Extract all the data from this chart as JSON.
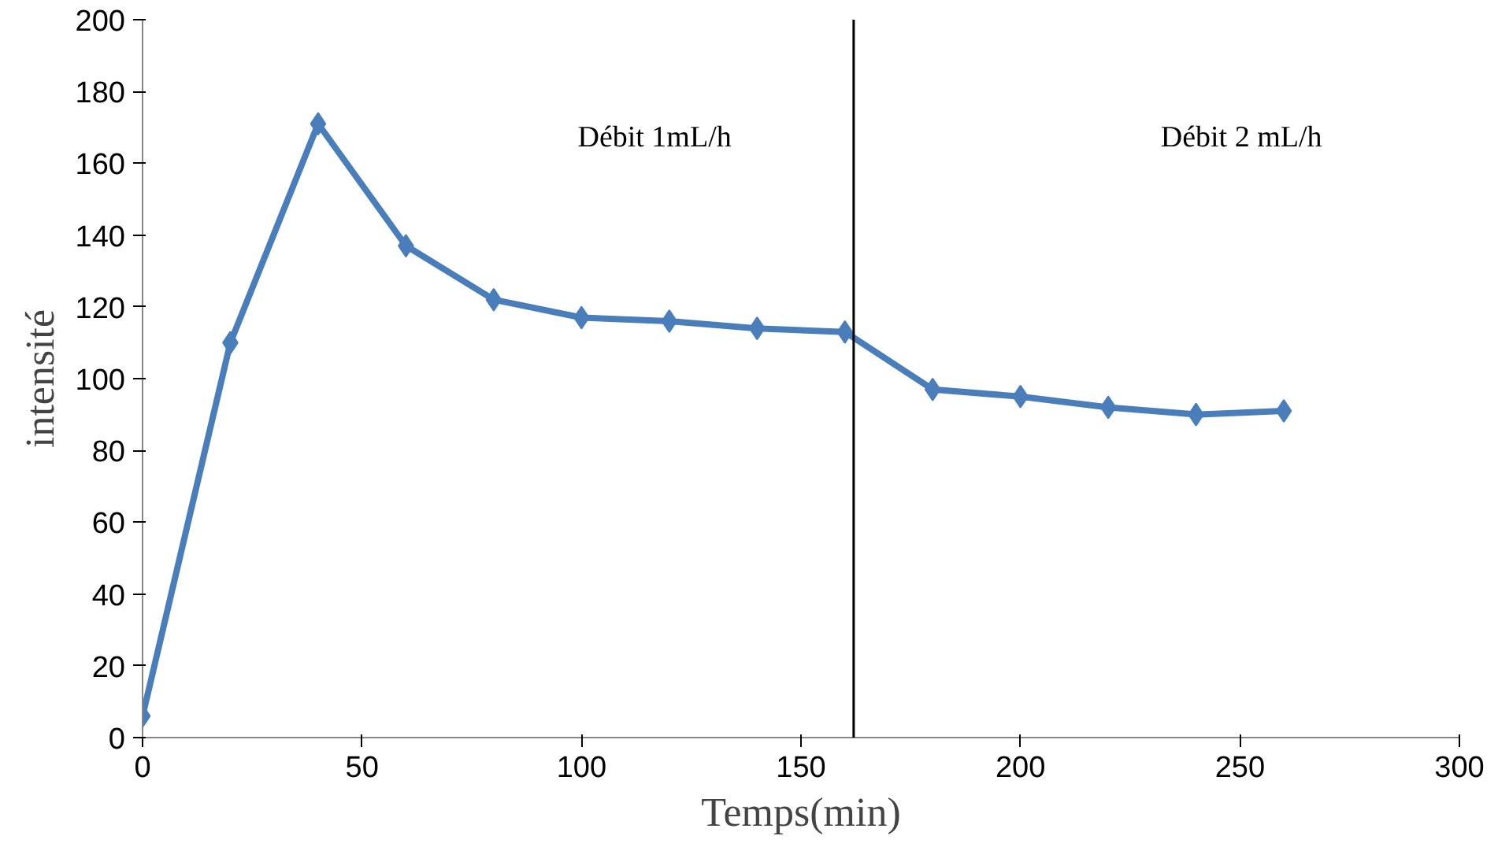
{
  "chart_data": {
    "type": "line",
    "xlabel": "Temps(min)",
    "ylabel": "intensité",
    "x": [
      0,
      20,
      40,
      60,
      80,
      100,
      120,
      140,
      160,
      180,
      200,
      220,
      240,
      260
    ],
    "series": [
      {
        "color": "#4a7ebb",
        "values": [
          6,
          110,
          171,
          137,
          122,
          117,
          116,
          114,
          113,
          97,
          95,
          92,
          90,
          91
        ]
      }
    ],
    "xlim": [
      0,
      300
    ],
    "xticks": [
      0,
      50,
      100,
      150,
      200,
      250,
      300
    ],
    "ylim": [
      0,
      200
    ],
    "yticks": [
      0,
      20,
      40,
      60,
      80,
      100,
      120,
      140,
      160,
      180,
      200
    ],
    "ref_lines": [
      {
        "axis": "x",
        "value": 162,
        "color": "#000000"
      }
    ],
    "annotations": [
      "Débit 1mL/h",
      "Débit 2 mL/h"
    ],
    "marker": "diamond",
    "grid": false
  }
}
